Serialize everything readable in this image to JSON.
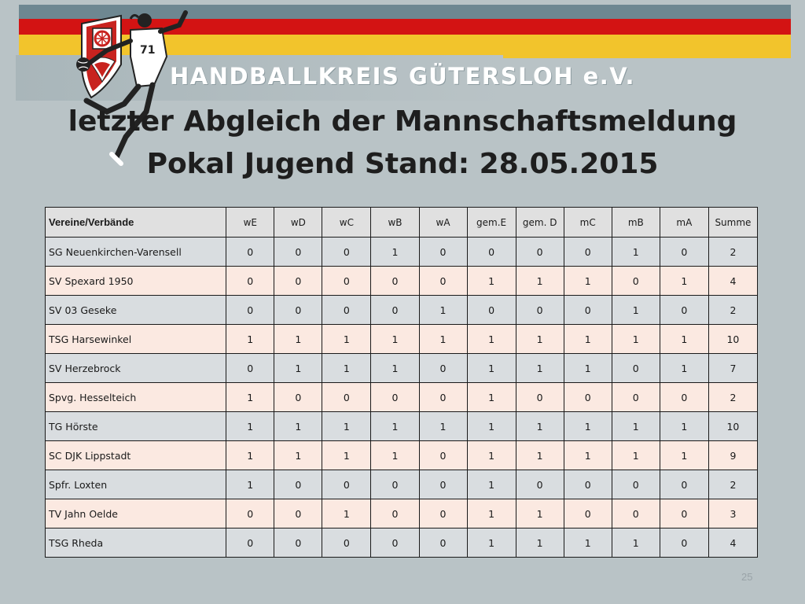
{
  "header": {
    "org_name": "HANDBALLKREIS GÜTERSLOH e.V.",
    "colors": {
      "gray": "#6e8791",
      "red": "#d31313",
      "yellow": "#f2c42c"
    }
  },
  "title": {
    "line1": "letzter Abgleich der Mannschaftsmeldung",
    "line2": "Pokal Jugend Stand: 28.05.2015"
  },
  "table": {
    "columns": [
      "Vereine/Verbände",
      "wE",
      "wD",
      "wC",
      "wB",
      "wA",
      "gem.E",
      "gem. D",
      "mC",
      "mB",
      "mA",
      "Summe"
    ],
    "rows": [
      [
        "SG Neuenkirchen-Varensell",
        "0",
        "0",
        "0",
        "1",
        "0",
        "0",
        "0",
        "0",
        "1",
        "0",
        "2"
      ],
      [
        "SV Spexard 1950",
        "0",
        "0",
        "0",
        "0",
        "0",
        "1",
        "1",
        "1",
        "0",
        "1",
        "4"
      ],
      [
        "SV 03 Geseke",
        "0",
        "0",
        "0",
        "0",
        "1",
        "0",
        "0",
        "0",
        "1",
        "0",
        "2"
      ],
      [
        "TSG Harsewinkel",
        "1",
        "1",
        "1",
        "1",
        "1",
        "1",
        "1",
        "1",
        "1",
        "1",
        "10"
      ],
      [
        "SV Herzebrock",
        "0",
        "1",
        "1",
        "1",
        "0",
        "1",
        "1",
        "1",
        "0",
        "1",
        "7"
      ],
      [
        "Spvg. Hesselteich",
        "1",
        "0",
        "0",
        "0",
        "0",
        "1",
        "0",
        "0",
        "0",
        "0",
        "2"
      ],
      [
        "TG Hörste",
        "1",
        "1",
        "1",
        "1",
        "1",
        "1",
        "1",
        "1",
        "1",
        "1",
        "10"
      ],
      [
        "SC DJK Lippstadt",
        "1",
        "1",
        "1",
        "1",
        "0",
        "1",
        "1",
        "1",
        "1",
        "1",
        "9"
      ],
      [
        "Spfr. Loxten",
        "1",
        "0",
        "0",
        "0",
        "0",
        "1",
        "0",
        "0",
        "0",
        "0",
        "2"
      ],
      [
        "TV Jahn Oelde",
        "0",
        "0",
        "1",
        "0",
        "0",
        "1",
        "1",
        "0",
        "0",
        "0",
        "3"
      ],
      [
        "TSG Rheda",
        "0",
        "0",
        "0",
        "0",
        "0",
        "1",
        "1",
        "1",
        "1",
        "0",
        "4"
      ]
    ]
  },
  "footer": {
    "page_number": "25"
  }
}
